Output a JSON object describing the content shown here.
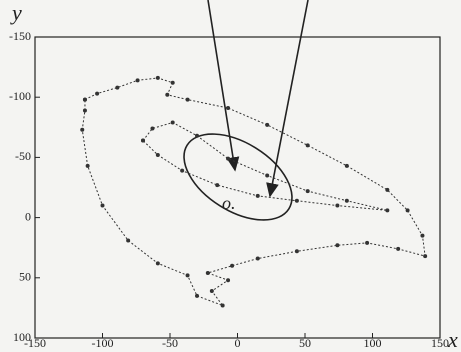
{
  "chart_data": {
    "type": "line",
    "y_label": "y",
    "x_label": "x",
    "origin_label": "o.",
    "xlim": [
      -150,
      150
    ],
    "xticks": [
      -150,
      -100,
      -50,
      0,
      50,
      100,
      150
    ],
    "ylim": [
      -150,
      100
    ],
    "yticks": [
      -150,
      -100,
      -50,
      0,
      50,
      100
    ],
    "series": [
      {
        "color": "#333333",
        "x": [
          -113,
          -104,
          -89,
          -74,
          -59,
          -48,
          -52,
          -37,
          -7,
          22,
          52,
          81,
          111,
          126,
          137,
          139,
          119,
          96,
          74,
          44,
          15,
          -4,
          -22,
          -7,
          -19,
          -11,
          -30,
          -37,
          -59,
          -81,
          -100,
          -111,
          -115,
          -113,
          -113
        ],
        "values": [
          -98,
          -103,
          -108,
          -114,
          -116,
          -112,
          -102,
          -98,
          -91,
          -77,
          -60,
          -43,
          -23,
          -6,
          15,
          32,
          26,
          21,
          23,
          28,
          34,
          40,
          46,
          52,
          61,
          73,
          65,
          48,
          38,
          19,
          -10,
          -43,
          -73,
          -89,
          -98
        ]
      },
      {
        "color": "#333333",
        "x": [
          -70,
          -63,
          -48,
          -30,
          -7,
          22,
          52,
          81,
          111,
          74,
          44,
          15,
          -15,
          -41,
          -59,
          -70
        ],
        "values": [
          -64,
          -74,
          -79,
          -68,
          -49,
          -35,
          -22,
          -14,
          -6,
          -10,
          -14,
          -18,
          -27,
          -39,
          -52,
          -64
        ]
      }
    ]
  }
}
